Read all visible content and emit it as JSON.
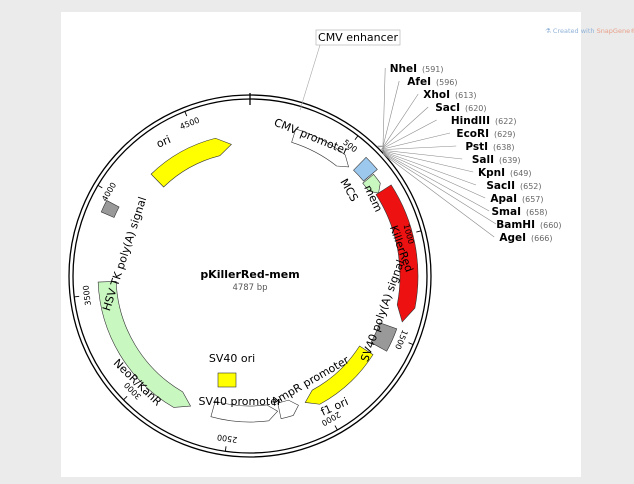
{
  "watermark": {
    "prefix": "Created with ",
    "brand": "SnapGene®"
  },
  "plasmid": {
    "name": "pKillerRed-mem",
    "length_label": "4787 bp",
    "length": 4787
  },
  "features": {
    "cmv_enhancer": "CMV enhancer",
    "cmv_promoter": "CMV promoter",
    "mcs": "MCS",
    "mem": "mem",
    "killerred": "KillerRed",
    "sv40_polya": "SV40 poly(A) signal",
    "f1_ori": "f1 ori",
    "ampr_promoter": "AmpR promoter",
    "sv40_promoter": "SV40 promoter",
    "sv40_ori": "SV40 ori",
    "neor": "NeoR/KanR",
    "hsv_polya": "HSV TK poly(A) signal",
    "ori": "ori"
  },
  "ticks": [
    "500",
    "1000",
    "1500",
    "2000",
    "2500",
    "3000",
    "3500",
    "4000",
    "4500"
  ],
  "sites": [
    {
      "name": "NheI",
      "pos": "(591)"
    },
    {
      "name": "AfeI",
      "pos": "(596)"
    },
    {
      "name": "XhoI",
      "pos": "(613)"
    },
    {
      "name": "SacI",
      "pos": "(620)"
    },
    {
      "name": "HindIII",
      "pos": "(622)"
    },
    {
      "name": "EcoRI",
      "pos": "(629)"
    },
    {
      "name": "PstI",
      "pos": "(638)"
    },
    {
      "name": "SalI",
      "pos": "(639)"
    },
    {
      "name": "KpnI",
      "pos": "(649)"
    },
    {
      "name": "SacII",
      "pos": "(652)"
    },
    {
      "name": "ApaI",
      "pos": "(657)"
    },
    {
      "name": "SmaI",
      "pos": "(658)"
    },
    {
      "name": "BamHI",
      "pos": "(660)"
    },
    {
      "name": "AgeI",
      "pos": "(666)"
    }
  ],
  "colors": {
    "backbone": "#000000",
    "killerred": "#ee1111",
    "yellow": "#ffff00",
    "green": "#c8f7c0",
    "gray": "#999999",
    "mcs_blue": "#9cc8ee",
    "promoter": "#ffffff"
  }
}
